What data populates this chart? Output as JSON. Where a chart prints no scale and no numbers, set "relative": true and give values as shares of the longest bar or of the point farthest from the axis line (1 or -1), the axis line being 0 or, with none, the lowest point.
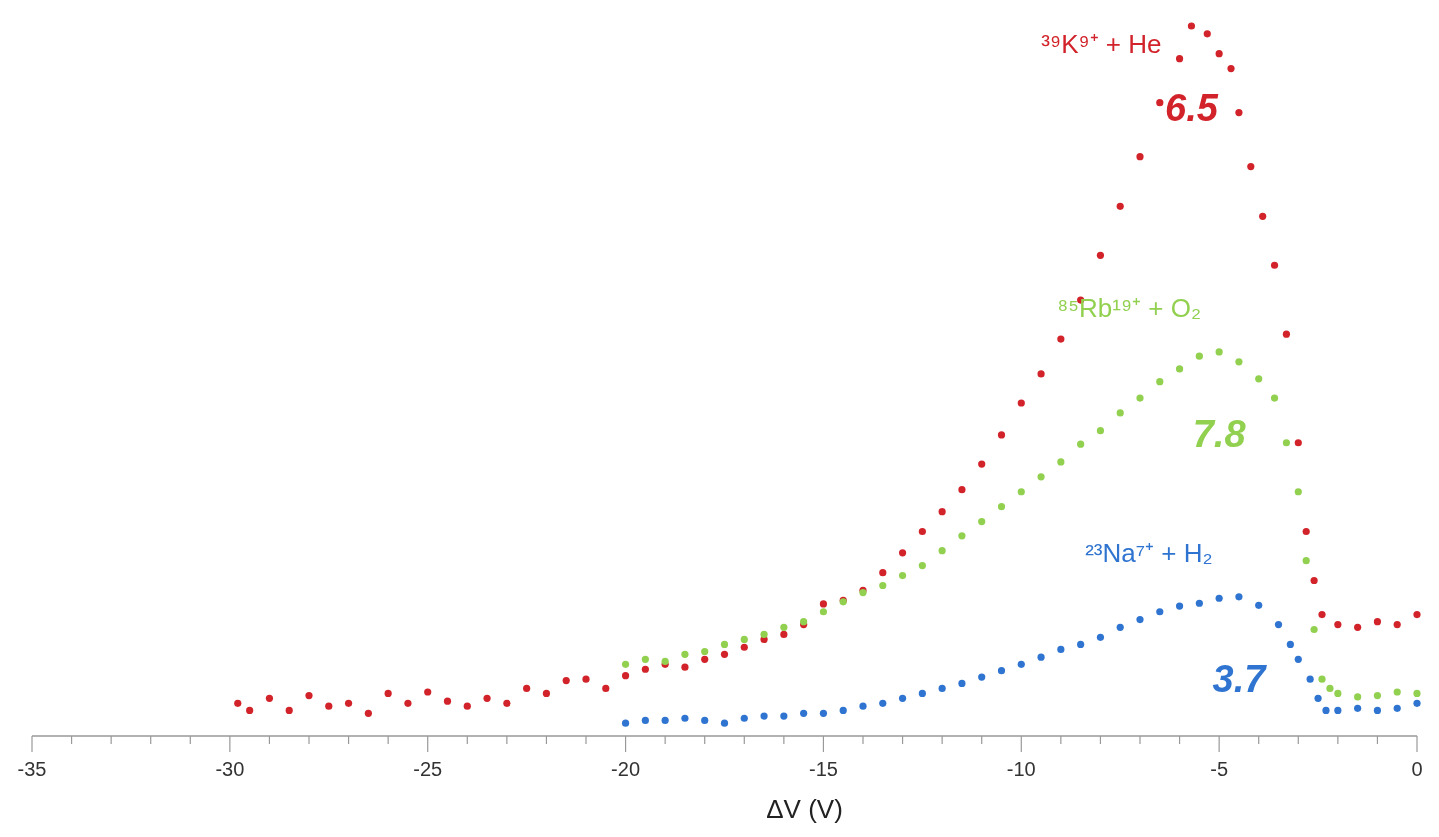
{
  "chart_data": {
    "type": "scatter",
    "relative": true,
    "xlabel": "ΔV (V)",
    "xlim": [
      -35,
      0
    ],
    "marker": "circle",
    "xticks": [
      -35,
      {
        "value": -34,
        "label": null
      },
      {
        "value": -33,
        "label": null
      },
      {
        "value": -32,
        "label": null
      },
      {
        "value": -31,
        "label": null
      },
      -30,
      {
        "value": -29,
        "label": null
      },
      {
        "value": -28,
        "label": null
      },
      {
        "value": -27,
        "label": null
      },
      {
        "value": -26,
        "label": null
      },
      -25,
      {
        "value": -24,
        "label": null
      },
      {
        "value": -23,
        "label": null
      },
      {
        "value": -22,
        "label": null
      },
      {
        "value": -21,
        "label": null
      },
      -20,
      {
        "value": -19,
        "label": null
      },
      {
        "value": -18,
        "label": null
      },
      {
        "value": -17,
        "label": null
      },
      {
        "value": -16,
        "label": null
      },
      -15,
      {
        "value": -14,
        "label": null
      },
      {
        "value": -13,
        "label": null
      },
      {
        "value": -12,
        "label": null
      },
      {
        "value": -11,
        "label": null
      },
      -10,
      {
        "value": -9,
        "label": null
      },
      {
        "value": -8,
        "label": null
      },
      {
        "value": -7,
        "label": null
      },
      {
        "value": -6,
        "label": null
      },
      -5,
      {
        "value": -4,
        "label": null
      },
      {
        "value": -3,
        "label": null
      },
      {
        "value": -2,
        "label": null
      },
      {
        "value": -1,
        "label": null
      },
      0
    ],
    "series": [
      {
        "name": "³⁹K⁹⁺ + He",
        "color": "#d2232a",
        "x": [
          -29.8,
          -29.5,
          -29,
          -28.5,
          -28,
          -27.5,
          -27,
          -26.5,
          -26,
          -25.5,
          -25,
          -24.5,
          -24,
          -23.5,
          -23,
          -22.5,
          -22,
          -21.5,
          -21,
          -20.5,
          -20,
          -19.5,
          -19,
          -18.5,
          -18,
          -17.5,
          -17,
          -16.5,
          -16,
          -15.5,
          -15,
          -14.5,
          -14,
          -13.5,
          -13,
          -12.5,
          -12,
          -11.5,
          -11,
          -10.5,
          -10,
          -9.5,
          -9,
          -8.5,
          -8,
          -7.5,
          -7,
          -6.5,
          -6,
          -5.7,
          -5.3,
          -5,
          -4.7,
          -4.5,
          -4.2,
          -3.9,
          -3.6,
          -3.3,
          -3,
          -2.8,
          -2.6,
          -2.4,
          -2,
          -1.5,
          -1,
          -0.5,
          0
        ],
        "values": [
          0.046,
          0.036,
          0.053,
          0.036,
          0.057,
          0.042,
          0.046,
          0.032,
          0.06,
          0.046,
          0.062,
          0.049,
          0.042,
          0.053,
          0.046,
          0.067,
          0.06,
          0.078,
          0.08,
          0.067,
          0.085,
          0.094,
          0.101,
          0.097,
          0.108,
          0.115,
          0.125,
          0.136,
          0.143,
          0.157,
          0.186,
          0.191,
          0.205,
          0.23,
          0.258,
          0.288,
          0.316,
          0.347,
          0.383,
          0.424,
          0.469,
          0.51,
          0.559,
          0.614,
          0.677,
          0.746,
          0.816,
          0.892,
          0.954,
          1,
          0.989,
          0.961,
          0.94,
          0.878,
          0.802,
          0.732,
          0.663,
          0.566,
          0.413,
          0.288,
          0.219,
          0.171,
          0.157,
          0.153,
          0.161,
          0.157,
          0.171
        ]
      },
      {
        "name": "⁸⁵Rb¹⁹⁺ + O₂",
        "color": "#92d050",
        "x": [
          -20,
          -19.5,
          -19,
          -18.5,
          -18,
          -17.5,
          -17,
          -16.5,
          -16,
          -15.5,
          -15,
          -14.5,
          -14,
          -13.5,
          -13,
          -12.5,
          -12,
          -11.5,
          -11,
          -10.5,
          -10,
          -9.5,
          -9,
          -8.5,
          -8,
          -7.5,
          -7,
          -6.5,
          -6,
          -5.5,
          -5,
          -4.5,
          -4,
          -3.6,
          -3.3,
          -3,
          -2.8,
          -2.6,
          -2.4,
          -2.2,
          -2,
          -1.5,
          -1,
          -0.5,
          0
        ],
        "values": [
          0.101,
          0.108,
          0.105,
          0.115,
          0.119,
          0.129,
          0.136,
          0.143,
          0.153,
          0.161,
          0.175,
          0.189,
          0.202,
          0.212,
          0.226,
          0.24,
          0.261,
          0.282,
          0.302,
          0.323,
          0.344,
          0.365,
          0.386,
          0.411,
          0.43,
          0.455,
          0.476,
          0.499,
          0.517,
          0.535,
          0.541,
          0.527,
          0.503,
          0.476,
          0.413,
          0.344,
          0.247,
          0.15,
          0.08,
          0.067,
          0.06,
          0.055,
          0.057,
          0.062,
          0.06
        ]
      },
      {
        "name": "²³Na⁷⁺ + H₂",
        "color": "#2f74d0",
        "x": [
          -20,
          -19.5,
          -19,
          -18.5,
          -18,
          -17.5,
          -17,
          -16.5,
          -16,
          -15.5,
          -15,
          -14.5,
          -14,
          -13.5,
          -13,
          -12.5,
          -12,
          -11.5,
          -11,
          -10.5,
          -10,
          -9.5,
          -9,
          -8.5,
          -8,
          -7.5,
          -7,
          -6.5,
          -6,
          -5.5,
          -5,
          -4.5,
          -4,
          -3.5,
          -3.2,
          -3,
          -2.7,
          -2.5,
          -2.3,
          -2,
          -1.5,
          -1,
          -0.5,
          0
        ],
        "values": [
          0.018,
          0.022,
          0.022,
          0.025,
          0.022,
          0.018,
          0.025,
          0.028,
          0.028,
          0.032,
          0.032,
          0.036,
          0.042,
          0.046,
          0.053,
          0.06,
          0.067,
          0.074,
          0.083,
          0.092,
          0.101,
          0.111,
          0.122,
          0.129,
          0.139,
          0.153,
          0.164,
          0.175,
          0.183,
          0.187,
          0.194,
          0.196,
          0.184,
          0.157,
          0.129,
          0.108,
          0.08,
          0.053,
          0.036,
          0.036,
          0.039,
          0.036,
          0.039,
          0.046
        ]
      }
    ],
    "annotations": [
      "6.5",
      "7.8",
      "3.7"
    ]
  }
}
